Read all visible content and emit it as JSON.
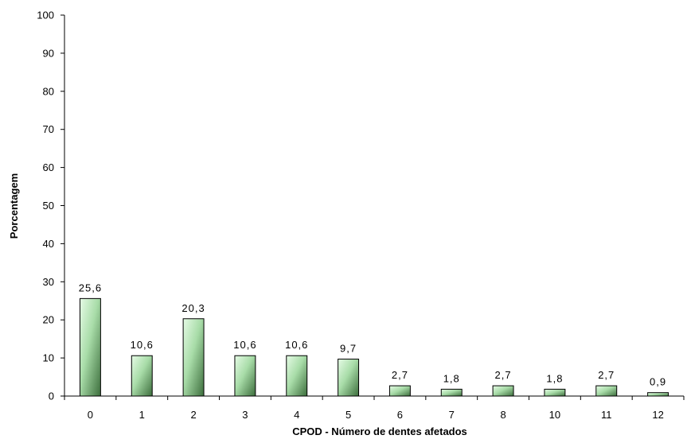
{
  "chart_data": {
    "type": "bar",
    "title": "",
    "xlabel": "CPOD - Número de dentes afetados",
    "ylabel": "Porcentagem",
    "categories": [
      "0",
      "1",
      "2",
      "3",
      "4",
      "5",
      "6",
      "7",
      "8",
      "10",
      "11",
      "12"
    ],
    "values": [
      25.6,
      10.6,
      20.3,
      10.6,
      10.6,
      9.7,
      2.7,
      1.8,
      2.7,
      1.8,
      2.7,
      0.9
    ],
    "value_labels": [
      "25,6",
      "10,6",
      "20,3",
      "10,6",
      "10,6",
      "9,7",
      "2,7",
      "1,8",
      "2,7",
      "1,8",
      "2,7",
      "0,9"
    ],
    "ylim": [
      0,
      100
    ],
    "yticks": [
      "0",
      "10",
      "20",
      "30",
      "40",
      "50",
      "60",
      "70",
      "80",
      "90",
      "100"
    ],
    "grid": false,
    "legend": "none",
    "colors": {
      "bar_light": "#e6fbe6",
      "bar_mid": "#a8dca8",
      "bar_dark": "#3c6e3c",
      "axis": "#000000"
    }
  }
}
